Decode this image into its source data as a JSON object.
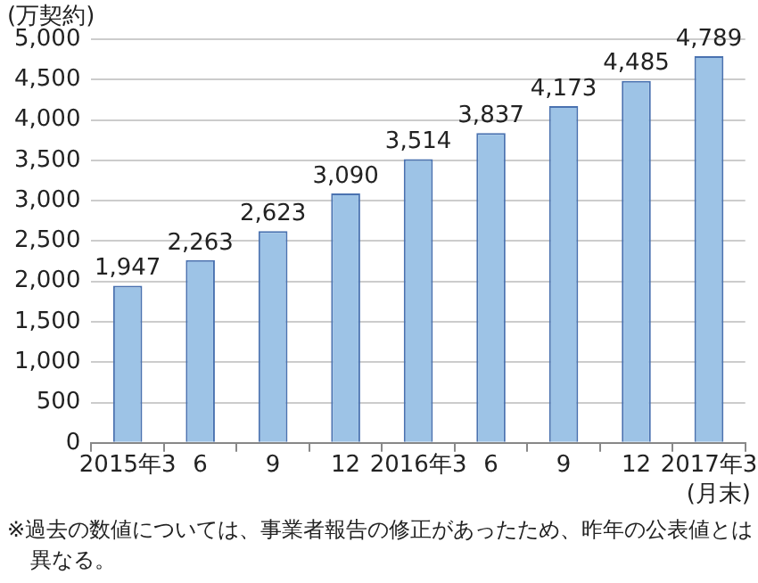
{
  "chart_data": {
    "type": "bar",
    "ylabel": "(万契約)",
    "xlabel": "(月末)",
    "categories": [
      "2015年3",
      "6",
      "9",
      "12",
      "2016年3",
      "6",
      "9",
      "12",
      "2017年3"
    ],
    "values": [
      1947,
      2263,
      2623,
      3090,
      3514,
      3837,
      4173,
      4485,
      4789
    ],
    "color": "#9dc3e6",
    "ylim": [
      0,
      5000
    ],
    "yticks": [
      {
        "value": 0,
        "label": "0"
      },
      {
        "value": 500,
        "label": "500"
      },
      {
        "value": 1000,
        "label": "1,000"
      },
      {
        "value": 1500,
        "label": "1,500"
      },
      {
        "value": 2000,
        "label": "2,000"
      },
      {
        "value": 2500,
        "label": "2,500"
      },
      {
        "value": 3000,
        "label": "3,000"
      },
      {
        "value": 3500,
        "label": "3,500"
      },
      {
        "value": 4000,
        "label": "4,000"
      },
      {
        "value": 4500,
        "label": "4,500"
      },
      {
        "value": 5000,
        "label": "5,000"
      }
    ],
    "value_labels": [
      "1,947",
      "2,263",
      "2,623",
      "3,090",
      "3,514",
      "3,837",
      "4,173",
      "4,485",
      "4,789"
    ],
    "grid": "y",
    "legend": false,
    "annotations": [
      "※過去の数値については、事業者報告の修正があったため、昨年の公表値とは異なる。"
    ]
  }
}
